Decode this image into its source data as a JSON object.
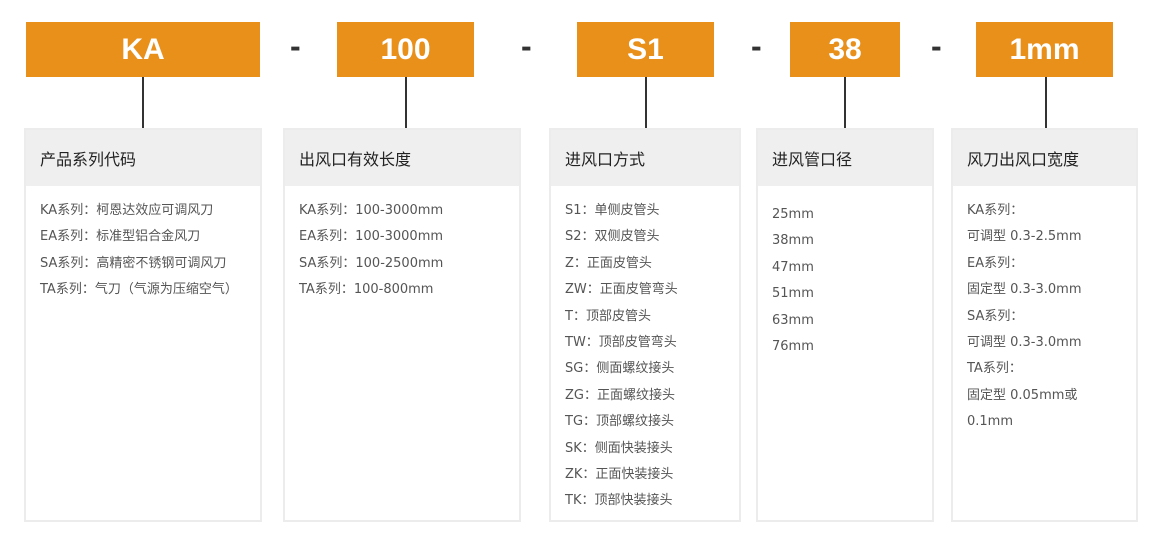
{
  "codes": [
    {
      "label": "KA",
      "title": "产品系列代码",
      "items": [
        "KA系列：柯恩达效应可调风刀",
        "EA系列：标准型铝合金风刀",
        "SA系列：高精密不锈钢可调风刀",
        "TA系列：气刀（气源为压缩空气）"
      ]
    },
    {
      "label": "100",
      "title": "出风口有效长度",
      "items": [
        "KA系列：100-3000mm",
        "EA系列：100-3000mm",
        "SA系列：100-2500mm",
        "TA系列：100-800mm"
      ]
    },
    {
      "label": "S1",
      "title": "进风口方式",
      "items": [
        "S1：单侧皮管头",
        "S2：双侧皮管头",
        "Z：正面皮管头",
        "ZW：正面皮管弯头",
        "T：顶部皮管头",
        "TW：顶部皮管弯头",
        "SG：侧面螺纹接头",
        "ZG：正面螺纹接头",
        "TG：顶部螺纹接头",
        "SK：侧面快装接头",
        "ZK：正面快装接头",
        "TK：顶部快装接头"
      ]
    },
    {
      "label": "38",
      "title": "进风管口径",
      "items": [
        "25mm",
        "38mm",
        "47mm",
        "51mm",
        "63mm",
        "76mm"
      ]
    },
    {
      "label": "1mm",
      "title": "风刀出风口宽度",
      "items": [
        "KA系列：",
        "可调型 0.3-2.5mm",
        "EA系列：",
        "固定型 0.3-3.0mm",
        "SA系列：",
        "可调型 0.3-3.0mm",
        "TA系列：",
        "固定型 0.05mm或",
        "0.1mm"
      ]
    }
  ],
  "separator": "-",
  "colors": {
    "accent": "#E9901B",
    "header_bg": "#efefef"
  }
}
